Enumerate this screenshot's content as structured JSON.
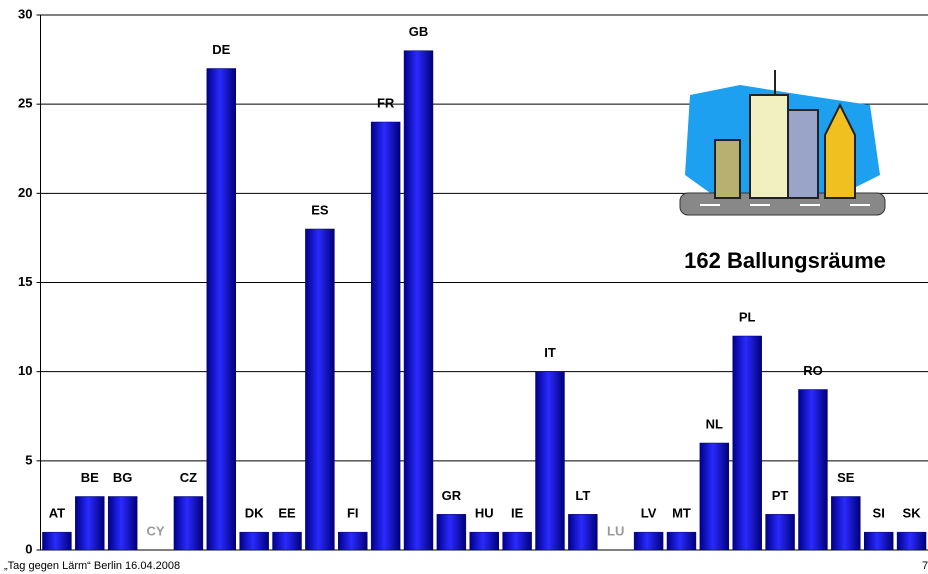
{
  "chart_data": {
    "type": "bar",
    "categories": [
      "AT",
      "BE",
      "BG",
      "CY",
      "CZ",
      "DE",
      "DK",
      "EE",
      "ES",
      "FI",
      "FR",
      "GB",
      "GR",
      "HU",
      "IE",
      "IT",
      "LT",
      "LU",
      "LV",
      "MT",
      "NL",
      "PL",
      "PT",
      "RO",
      "SE",
      "SI",
      "SK"
    ],
    "values": [
      1,
      3,
      3,
      0,
      3,
      27,
      1,
      1,
      18,
      1,
      24,
      28,
      2,
      1,
      1,
      10,
      2,
      0,
      1,
      1,
      6,
      12,
      2,
      9,
      3,
      1,
      1
    ],
    "color": "#0000dd",
    "label_color": "#000000",
    "empty_label_color": "#999999",
    "ylim": [
      0,
      30
    ],
    "yticks": [
      0,
      5,
      10,
      15,
      20,
      25,
      30
    ],
    "grid": true,
    "annotation": "162 Ballungsräume"
  },
  "footer": "„Tag gegen Lärm“ Berlin 16.04.2008",
  "page_number": "7"
}
